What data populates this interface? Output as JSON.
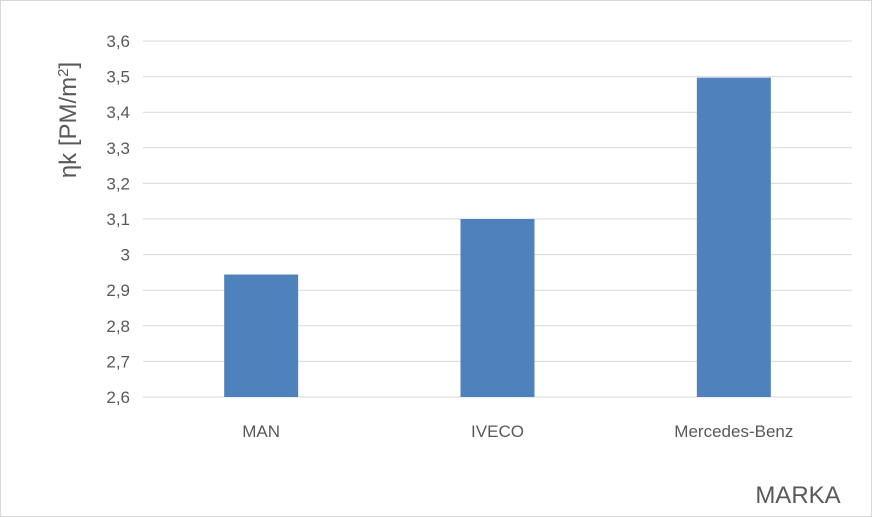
{
  "chart_data": {
    "type": "bar",
    "categories": [
      "MAN",
      "IVECO",
      "Mercedes-Benz"
    ],
    "values": [
      2.944,
      3.1,
      3.497
    ],
    "title": "",
    "xlabel": "MARKA",
    "ylabel": "ηk [PM/m²]",
    "ylabel_parts": {
      "main": "ηk [PM/m",
      "sup": "2",
      "close": "]"
    },
    "ylim": [
      2.6,
      3.6
    ],
    "yticks": [
      2.6,
      2.7,
      2.8,
      2.9,
      3.0,
      3.1,
      3.2,
      3.3,
      3.4,
      3.5,
      3.6
    ],
    "ytick_labels": [
      "2,6",
      "2,7",
      "2,8",
      "2,9",
      "3",
      "3,1",
      "3,2",
      "3,3",
      "3,4",
      "3,5",
      "3,6"
    ],
    "grid": true,
    "legend": "none",
    "colors": {
      "bar": "#4f81bd",
      "grid": "#d9d9d9",
      "text": "#595959"
    }
  }
}
